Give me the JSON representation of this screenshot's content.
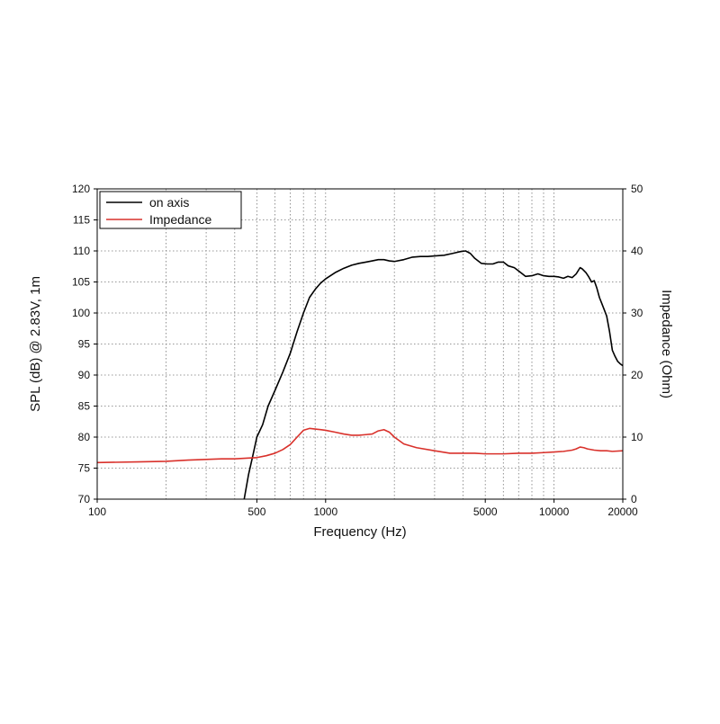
{
  "chart_data": {
    "type": "line",
    "xlabel": "Frequency (Hz)",
    "ylabel": "SPL (dB) @ 2.83V, 1m",
    "y2label": "Impedance (Ohm)",
    "xscale": "log",
    "xlim": [
      100,
      20000
    ],
    "ylim": [
      70,
      120
    ],
    "y2lim": [
      0,
      50
    ],
    "grid": true,
    "legend_position": "top-left",
    "x_tick_labels": [
      {
        "value": 100,
        "label": "100"
      },
      {
        "value": 500,
        "label": "500"
      },
      {
        "value": 1000,
        "label": "1000"
      },
      {
        "value": 5000,
        "label": "5000"
      },
      {
        "value": 10000,
        "label": "10000"
      },
      {
        "value": 20000,
        "label": "20000"
      }
    ],
    "y_ticks": [
      70,
      75,
      80,
      85,
      90,
      95,
      100,
      105,
      110,
      115,
      120
    ],
    "y2_ticks": [
      0,
      10,
      20,
      30,
      40,
      50
    ],
    "series": [
      {
        "name": "on axis",
        "axis": "left",
        "color": "#000000",
        "x": [
          440,
          460,
          480,
          500,
          530,
          560,
          600,
          650,
          700,
          750,
          800,
          850,
          900,
          950,
          1000,
          1100,
          1200,
          1300,
          1400,
          1500,
          1600,
          1700,
          1800,
          1900,
          2000,
          2200,
          2400,
          2600,
          2800,
          3000,
          3300,
          3600,
          3900,
          4100,
          4300,
          4500,
          4800,
          5100,
          5400,
          5700,
          6000,
          6300,
          6700,
          7100,
          7500,
          8000,
          8500,
          9000,
          9500,
          10000,
          10500,
          11000,
          11500,
          12000,
          12500,
          13000,
          13300,
          13800,
          14200,
          14600,
          15000,
          15400,
          15800,
          16200,
          16600,
          17000,
          17500,
          18000,
          18500,
          19000,
          19500,
          20000
        ],
        "values": [
          70,
          74,
          77,
          80,
          82,
          85,
          87.5,
          90.5,
          93.5,
          97,
          100,
          102.5,
          103.8,
          104.8,
          105.5,
          106.5,
          107.2,
          107.7,
          108.0,
          108.2,
          108.4,
          108.6,
          108.6,
          108.4,
          108.3,
          108.6,
          109.0,
          109.1,
          109.1,
          109.2,
          109.3,
          109.6,
          109.9,
          110.0,
          109.6,
          108.8,
          108.0,
          107.9,
          107.9,
          108.2,
          108.2,
          107.6,
          107.3,
          106.6,
          105.9,
          106.0,
          106.3,
          106.0,
          105.9,
          105.9,
          105.8,
          105.6,
          105.9,
          105.7,
          106.3,
          107.3,
          107.1,
          106.5,
          105.8,
          105.0,
          105.2,
          104.0,
          102.5,
          101.5,
          100.5,
          99.5,
          97.0,
          94.0,
          93.0,
          92.2,
          91.8,
          91.5
        ]
      },
      {
        "name": "Impedance",
        "axis": "right",
        "color": "#d9312b",
        "x": [
          100,
          150,
          200,
          250,
          300,
          350,
          400,
          450,
          500,
          550,
          600,
          650,
          700,
          750,
          800,
          850,
          900,
          950,
          1000,
          1100,
          1200,
          1300,
          1400,
          1500,
          1600,
          1700,
          1800,
          1900,
          2000,
          2200,
          2500,
          3000,
          3500,
          4000,
          4500,
          5000,
          5500,
          6000,
          7000,
          8000,
          9000,
          10000,
          11000,
          12000,
          12500,
          13000,
          13500,
          14000,
          15000,
          16000,
          17000,
          18000,
          20000
        ],
        "values": [
          5.9,
          6.0,
          6.1,
          6.3,
          6.4,
          6.5,
          6.5,
          6.6,
          6.7,
          7.0,
          7.4,
          8.0,
          8.8,
          10.0,
          11.1,
          11.4,
          11.3,
          11.2,
          11.1,
          10.8,
          10.5,
          10.3,
          10.3,
          10.4,
          10.5,
          11.0,
          11.2,
          10.8,
          10.0,
          8.9,
          8.3,
          7.8,
          7.4,
          7.4,
          7.4,
          7.3,
          7.3,
          7.3,
          7.4,
          7.4,
          7.5,
          7.6,
          7.7,
          7.9,
          8.1,
          8.4,
          8.3,
          8.1,
          7.9,
          7.8,
          7.8,
          7.7,
          7.8
        ]
      }
    ]
  }
}
